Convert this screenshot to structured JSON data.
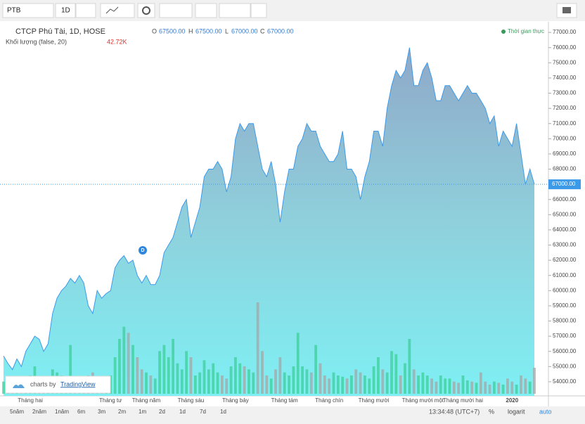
{
  "toolbar": {
    "symbol": "PTB",
    "interval": "1D"
  },
  "legend": {
    "title": "CTCP Phú Tài, 1D, HOSE",
    "o_label": "O",
    "o": "67500.00",
    "h_label": "H",
    "h": "67500.00",
    "l_label": "L",
    "l": "67000.00",
    "c_label": "C",
    "c": "67000.00",
    "volume_title": "Khối lượng (false, 20)",
    "volume_value": "42.72K",
    "realtime": "Thời gian thực",
    "event": "D"
  },
  "branding": {
    "prefix": "charts by",
    "name": "TradingView"
  },
  "bottom_bar": {
    "ranges": [
      "5năm",
      "2năm",
      "1năm",
      "6m",
      "3m",
      "2m",
      "1m",
      "2d",
      "1d",
      "7d",
      "1d"
    ],
    "time": "13:34:48 (UTC+7)",
    "percent": "%",
    "log": "logarit",
    "auto": "auto"
  },
  "chart_data": {
    "type": "area",
    "line_color": "#3d9ae8",
    "up_color": "#3ccf9a",
    "down_color": "#a6a6a6",
    "ylim": [
      53070,
      77700
    ],
    "yticks": [
      {
        "value": 54000,
        "label": "54000.00"
      },
      {
        "value": 55000,
        "label": "55000.00"
      },
      {
        "value": 56000,
        "label": "56000.00"
      },
      {
        "value": 57000,
        "label": "57000.00"
      },
      {
        "value": 58000,
        "label": "58000.00"
      },
      {
        "value": 59000,
        "label": "59000.00"
      },
      {
        "value": 60000,
        "label": "60000.00"
      },
      {
        "value": 61000,
        "label": "61000.00"
      },
      {
        "value": 62000,
        "label": "62000.00"
      },
      {
        "value": 63000,
        "label": "63000.00"
      },
      {
        "value": 64000,
        "label": "64000.00"
      },
      {
        "value": 65000,
        "label": "65000.00"
      },
      {
        "value": 66000,
        "label": "66000.00"
      },
      {
        "value": 68000,
        "label": "68000.00"
      },
      {
        "value": 69000,
        "label": "69000.00"
      },
      {
        "value": 70000,
        "label": "70000.00"
      },
      {
        "value": 71000,
        "label": "71000.00"
      },
      {
        "value": 72000,
        "label": "72000.00"
      },
      {
        "value": 73000,
        "label": "73000.00"
      },
      {
        "value": 74000,
        "label": "74000.00"
      },
      {
        "value": 75000,
        "label": "75000.00"
      },
      {
        "value": 76000,
        "label": "76000.00"
      },
      {
        "value": 77000,
        "label": "77000.00"
      }
    ],
    "last_price": {
      "value": 67000,
      "label": "67000.00"
    },
    "categories": [
      null,
      null,
      null,
      null,
      null,
      null,
      "Tháng hai",
      null,
      null,
      null,
      null,
      null,
      null,
      null,
      null,
      null,
      null,
      null,
      null,
      null,
      null,
      null,
      null,
      null,
      "Tháng tư",
      null,
      null,
      null,
      null,
      null,
      null,
      null,
      "Tháng năm",
      null,
      null,
      null,
      null,
      null,
      null,
      null,
      null,
      null,
      "Tháng sáu",
      null,
      null,
      null,
      null,
      null,
      null,
      null,
      null,
      null,
      "Tháng bảy",
      null,
      null,
      null,
      null,
      null,
      null,
      null,
      null,
      null,
      null,
      "Tháng tám",
      null,
      null,
      null,
      null,
      null,
      null,
      null,
      null,
      null,
      "Tháng chín",
      null,
      null,
      null,
      null,
      null,
      null,
      null,
      null,
      null,
      "Tháng mười",
      null,
      null,
      null,
      null,
      null,
      null,
      null,
      null,
      null,
      null,
      "Tháng mười một",
      null,
      null,
      null,
      null,
      null,
      null,
      null,
      null,
      "Tháng mười hai",
      null,
      null,
      null,
      null,
      null,
      null,
      null,
      null,
      null,
      null,
      "2020",
      null,
      null,
      null,
      null,
      null
    ],
    "values": [
      55700,
      55200,
      54800,
      55500,
      55000,
      56000,
      56500,
      57000,
      56800,
      56000,
      56500,
      58500,
      59500,
      60000,
      60300,
      60800,
      60500,
      61000,
      60500,
      59000,
      58500,
      60000,
      59500,
      59800,
      60000,
      61500,
      62000,
      62300,
      61800,
      62000,
      61000,
      60500,
      61000,
      60400,
      60400,
      61000,
      62500,
      63000,
      63500,
      64500,
      65500,
      66000,
      63500,
      64500,
      65500,
      67500,
      68000,
      68000,
      68500,
      68000,
      66500,
      67500,
      70000,
      71000,
      70500,
      71000,
      71000,
      69500,
      68000,
      67500,
      68500,
      67000,
      64500,
      66500,
      68000,
      68000,
      69500,
      70000,
      71000,
      70500,
      70500,
      69500,
      69000,
      68500,
      68500,
      69000,
      70500,
      68000,
      68000,
      67500,
      66000,
      67500,
      68500,
      70500,
      70500,
      69500,
      72000,
      73500,
      74500,
      74000,
      74500,
      76000,
      73500,
      73500,
      74500,
      75000,
      74000,
      72500,
      72500,
      73500,
      73500,
      73000,
      72500,
      73000,
      73500,
      73000,
      73000,
      72500,
      72000,
      71000,
      71500,
      69500,
      70500,
      70000,
      69500,
      71000,
      69000,
      67000,
      68000,
      67000
    ],
    "volume": [
      20000,
      15000,
      12000,
      25000,
      18000,
      22000,
      30000,
      45000,
      20000,
      15000,
      18000,
      40000,
      35000,
      30000,
      25000,
      80000,
      20000,
      22000,
      15000,
      30000,
      35000,
      25000,
      18000,
      15000,
      30000,
      60000,
      90000,
      110000,
      100000,
      80000,
      60000,
      40000,
      35000,
      30000,
      25000,
      70000,
      80000,
      60000,
      90000,
      50000,
      40000,
      70000,
      60000,
      30000,
      35000,
      55000,
      40000,
      50000,
      35000,
      30000,
      25000,
      45000,
      60000,
      50000,
      45000,
      40000,
      35000,
      150000,
      70000,
      30000,
      25000,
      40000,
      60000,
      35000,
      30000,
      45000,
      100000,
      45000,
      40000,
      35000,
      80000,
      50000,
      30000,
      25000,
      35000,
      30000,
      28000,
      25000,
      30000,
      40000,
      35000,
      30000,
      25000,
      45000,
      60000,
      40000,
      35000,
      70000,
      65000,
      30000,
      50000,
      90000,
      40000,
      30000,
      35000,
      30000,
      25000,
      20000,
      30000,
      25000,
      25000,
      20000,
      18000,
      30000,
      22000,
      20000,
      18000,
      35000,
      20000,
      15000,
      20000,
      18000,
      15000,
      25000,
      20000,
      15000,
      30000,
      25000,
      20000,
      42720
    ]
  }
}
